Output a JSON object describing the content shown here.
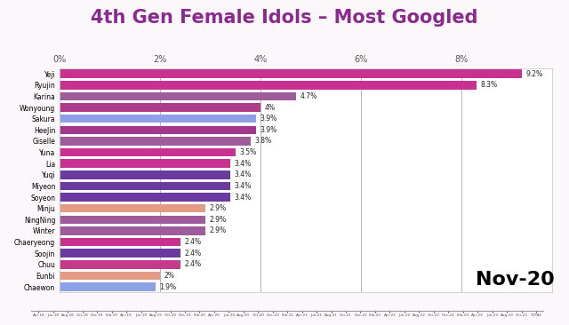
{
  "chart_data": {
    "type": "bar",
    "orientation": "horizontal",
    "title": "4th Gen Female Idols – Most Googled",
    "categories": [
      "Yeji",
      "Ryujin",
      "Karina",
      "Wonyoung",
      "Sakura",
      "HeeJin",
      "Giselle",
      "Yuna",
      "Lia",
      "Yuqi",
      "Miyeon",
      "Soyeon",
      "Minju",
      "NingNing",
      "Winter",
      "Chaeryeong",
      "Soojin",
      "Chuu",
      "Eunbi",
      "Chaewon"
    ],
    "values": [
      9.2,
      8.3,
      4.7,
      4,
      3.9,
      3.9,
      3.8,
      3.5,
      3.4,
      3.4,
      3.4,
      3.4,
      2.9,
      2.9,
      2.9,
      2.4,
      2.4,
      2.4,
      2,
      1.9
    ],
    "value_labels": [
      "9.2%",
      "8.3%",
      "4.7%",
      "4%",
      "3.9%",
      "3.9%",
      "3.8%",
      "3.5%",
      "3.4%",
      "3.4%",
      "3.4%",
      "3.4%",
      "2.9%",
      "2.9%",
      "2.9%",
      "2.4%",
      "2.4%",
      "2.4%",
      "2%",
      "1.9%"
    ],
    "colors": [
      "#c8318f",
      "#c8318f",
      "#9e5c9a",
      "#b03a8a",
      "#8ea0e6",
      "#a3378e",
      "#9e5c9a",
      "#c8318f",
      "#c8318f",
      "#6a3a9e",
      "#6a3a9e",
      "#6a3a9e",
      "#e59a86",
      "#9e5c9a",
      "#9e5c9a",
      "#c8318f",
      "#6a3a9e",
      "#c43b8c",
      "#e59a86",
      "#8ea0e6"
    ],
    "data_labels": true,
    "xlim": [
      0,
      9.8
    ],
    "xticks": [
      {
        "value": 0,
        "label": "0%"
      },
      {
        "value": 2,
        "label": "2%"
      },
      {
        "value": 4,
        "label": "4%"
      },
      {
        "value": 6,
        "label": "6%"
      },
      {
        "value": 8,
        "label": "8%"
      }
    ],
    "grid": true,
    "annotations": [
      "Nov-20"
    ],
    "timeline": [
      "Apr-18",
      "Jun-18",
      "Aug-18",
      "Oct-18",
      "Dec-18",
      "Feb-19",
      "Apr-19",
      "Jun-19",
      "Aug-19",
      "Oct-19",
      "Dec-19",
      "Feb-20",
      "Apr-20",
      "Jun-20",
      "Aug-20",
      "Oct-20",
      "Dec-20",
      "Feb-21",
      "Apr-21",
      "Jun-21",
      "Aug-21",
      "Oct-21",
      "Dec-21",
      "Feb-22",
      "Apr-22",
      "Jun-22",
      "Aug-22",
      "Oct-22",
      "Dec-22",
      "Feb-23",
      "Apr-23",
      "Jun-23",
      "Aug-23",
      "Oct-23",
      "TOTAL"
    ]
  }
}
